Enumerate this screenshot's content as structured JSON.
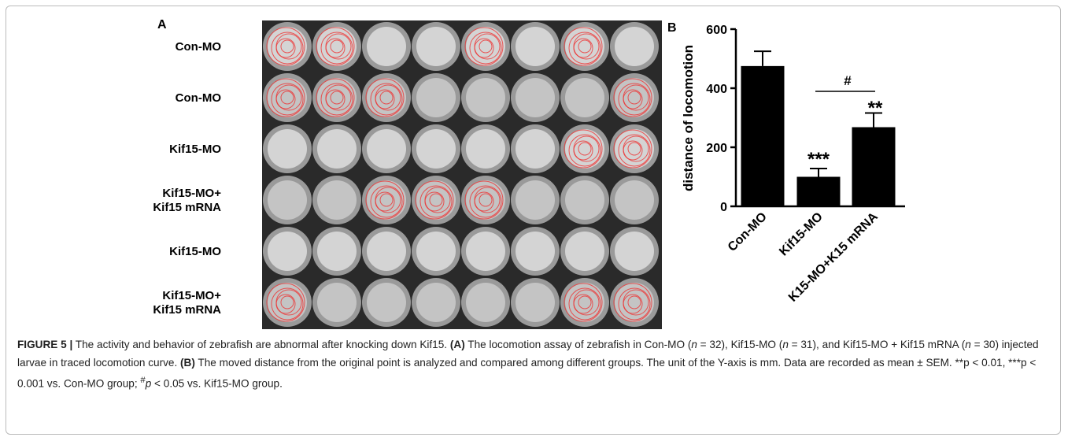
{
  "panel_a": {
    "label": "A",
    "row_labels": [
      [
        "Con-MO"
      ],
      [
        "Con-MO"
      ],
      [
        "Kif15-MO"
      ],
      [
        "Kif15-MO+",
        "Kif15 mRNA"
      ],
      [
        "Kif15-MO"
      ],
      [
        "Kif15-MO+",
        "Kif15 mRNA"
      ]
    ]
  },
  "chart_data": {
    "type": "bar",
    "panel_label": "B",
    "y_label": "distance of locomotion",
    "categories": [
      "Con-MO",
      "Kif15-MO",
      "K15-MO+K15 mRNA"
    ],
    "values": [
      475,
      100,
      268
    ],
    "errors": [
      50,
      28,
      48
    ],
    "color": "#000000",
    "ylim": [
      0,
      600
    ],
    "yticks": [
      0,
      200,
      400,
      600
    ],
    "annotations": [
      "***",
      "**",
      "#"
    ]
  },
  "caption": [
    "FIGURE 5 |",
    " The activity and behavior of zebrafish are abnormal after knocking down Kif15. ",
    "(A)",
    " The locomotion assay of zebrafish in Con-MO (",
    "n",
    " = 32), Kif15-MO (",
    "n",
    " = 31), and Kif15-MO + Kif15 mRNA (",
    "n",
    " = 30) injected larvae in traced locomotion curve. ",
    "(B)",
    " The moved distance from the original point is analyzed and compared among different groups. The unit of the Y-axis is mm. Data are recorded as mean ± SEM. **p < 0.01, ***p < 0.001 vs. Con-MO group; ",
    "#",
    "p",
    " < 0.05 vs. Kif15-MO group."
  ]
}
